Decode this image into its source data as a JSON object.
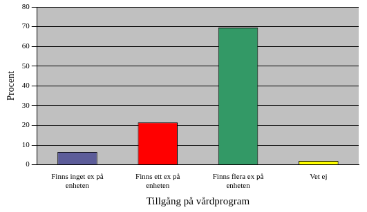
{
  "chart_data": {
    "type": "bar",
    "categories": [
      "Finns inget ex på enheten",
      "Finns ett ex på enheten",
      "Finns flera ex på enheten",
      "Vet ej"
    ],
    "values": [
      6.5,
      21.5,
      69.5,
      2
    ],
    "colors": [
      "#5c5c99",
      "#ff0000",
      "#339966",
      "#ffff00"
    ],
    "x_label": "Tillgång på vårdprogram",
    "y_label": "Procent",
    "ylim": [
      0,
      80
    ],
    "yticks": [
      0,
      10,
      20,
      30,
      40,
      50,
      60,
      70,
      80
    ],
    "grid": true
  }
}
